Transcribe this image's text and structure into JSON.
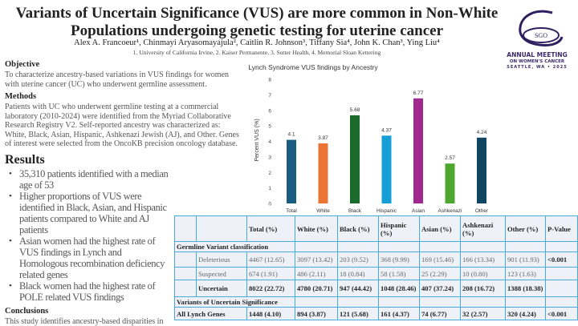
{
  "header": {
    "title_line1": "Variants of Uncertain Significance (VUS) are more common in Non-White",
    "title_line2": "Populations undergoing genetic testing for uterine cancer",
    "authors": "Alex A. Francoeur¹, Chinmayi Aryasomayajula², Caitlin R. Johnson³, Tiffany Sia⁴, John K. Chan³, Ying Liu⁴",
    "affiliations": "1. University of California Irvine, 2. Kaiser Permanente, 3. Sutter Health, 4. Memorial Sloan Kettering"
  },
  "logo": {
    "mark": "SGO",
    "line1": "ANNUAL MEETING",
    "line2": "ON WOMEN'S CANCER",
    "line3": "SEATTLE, WA • 2025",
    "color": "#3b2b6b"
  },
  "objective": {
    "heading": "Objective",
    "text": "To characterize ancestry-based variations in VUS findings for women with uterine cancer (UC) who underwent germline assessment."
  },
  "methods": {
    "heading": "Methods",
    "text": "Patients with UC who underwent germline testing at a commercial laboratory (2010-2024) were identified from the Myriad Collaborative Research Registry V2. Self-reported ancestry was characterized as: White, Black, Asian, Hispanic, Ashkenazi Jewish (AJ), and Other. Genes of interest were selected from the OncoKB precision oncology database."
  },
  "results": {
    "heading": "Results",
    "bullets": [
      "35,310 patients identified with a median age of 53",
      "Higher proportions of VUS were identified in Black, Asian, and Hispanic patients compared to White and AJ patients",
      "Asian women had the highest rate of VUS findings in Lynch and Homologous recombination deficiency related genes",
      "Black women had the highest rate of POLE related VUS findings"
    ]
  },
  "conclusions": {
    "heading": "Conclusions",
    "text": "This study identifies ancestry-based disparities in"
  },
  "chart_data": {
    "type": "bar",
    "title": "Lynch Syndrome VUS findings by Ancestry",
    "xlabel": "",
    "ylabel": "Percent VUS (%)",
    "ylim": [
      0,
      8
    ],
    "yticks": [
      "0",
      "1",
      "2",
      "3",
      "4",
      "5",
      "6",
      "7",
      "8"
    ],
    "grid": false,
    "categories": [
      "Total",
      "White",
      "Black",
      "Hispanic",
      "Asian",
      "Ashkenazi",
      "Other"
    ],
    "values": [
      4.1,
      3.87,
      5.68,
      4.37,
      6.77,
      2.57,
      4.24
    ],
    "labels": [
      "4.1",
      "3.87",
      "5.68",
      "4.37",
      "6.77",
      "2.57",
      "4.24"
    ],
    "colors": [
      "#1b5d80",
      "#ea7434",
      "#1c6b2a",
      "#159fd6",
      "#a0288f",
      "#4ea72e",
      "#104660"
    ]
  },
  "table": {
    "headers": [
      "",
      "",
      "Total (%)",
      "White (%)",
      "Black (%)",
      "Hispanic (%)",
      "Asian (%)",
      "Ashkenazi (%)",
      "Other (%)",
      "P-Value"
    ],
    "sections": [
      {
        "title": "Germline Variant classification",
        "rows": [
          {
            "label": "Deleterious",
            "bold": false,
            "cells": [
              "4467 (12.65)",
              "3097 (13.42)",
              "203 (9.52)",
              "368 (9.99)",
              "169 (15.46)",
              "166 (13.34)",
              "901 (11.93)"
            ],
            "p": "<0.001"
          },
          {
            "label": "Suspected",
            "bold": false,
            "cells": [
              "674 (1.91)",
              "486 (2.11)",
              "18 (0.84)",
              "58 (1.58)",
              "25 (2.29)",
              "10 (0.80)",
              "123 (1.63)"
            ],
            "p": ""
          },
          {
            "label": "Uncertain",
            "bold": true,
            "cells": [
              "8022 (22.72)",
              "4780 (20.71)",
              "947 (44.42)",
              "1048 (28.46)",
              "407 (37.24)",
              "208 (16.72)",
              "1388 (18.38)"
            ],
            "p": ""
          }
        ]
      },
      {
        "title": "Variants of Uncertain Significance",
        "rows": [
          {
            "label": "All Lynch Genes",
            "bold": true,
            "cells": [
              "1448 (4.10)",
              "894 (3.87)",
              "121 (5.68)",
              "161 (4.37)",
              "74 (6.77)",
              "32 (2.57)",
              "320 (4.24)"
            ],
            "p": "<0.001"
          }
        ]
      }
    ]
  }
}
